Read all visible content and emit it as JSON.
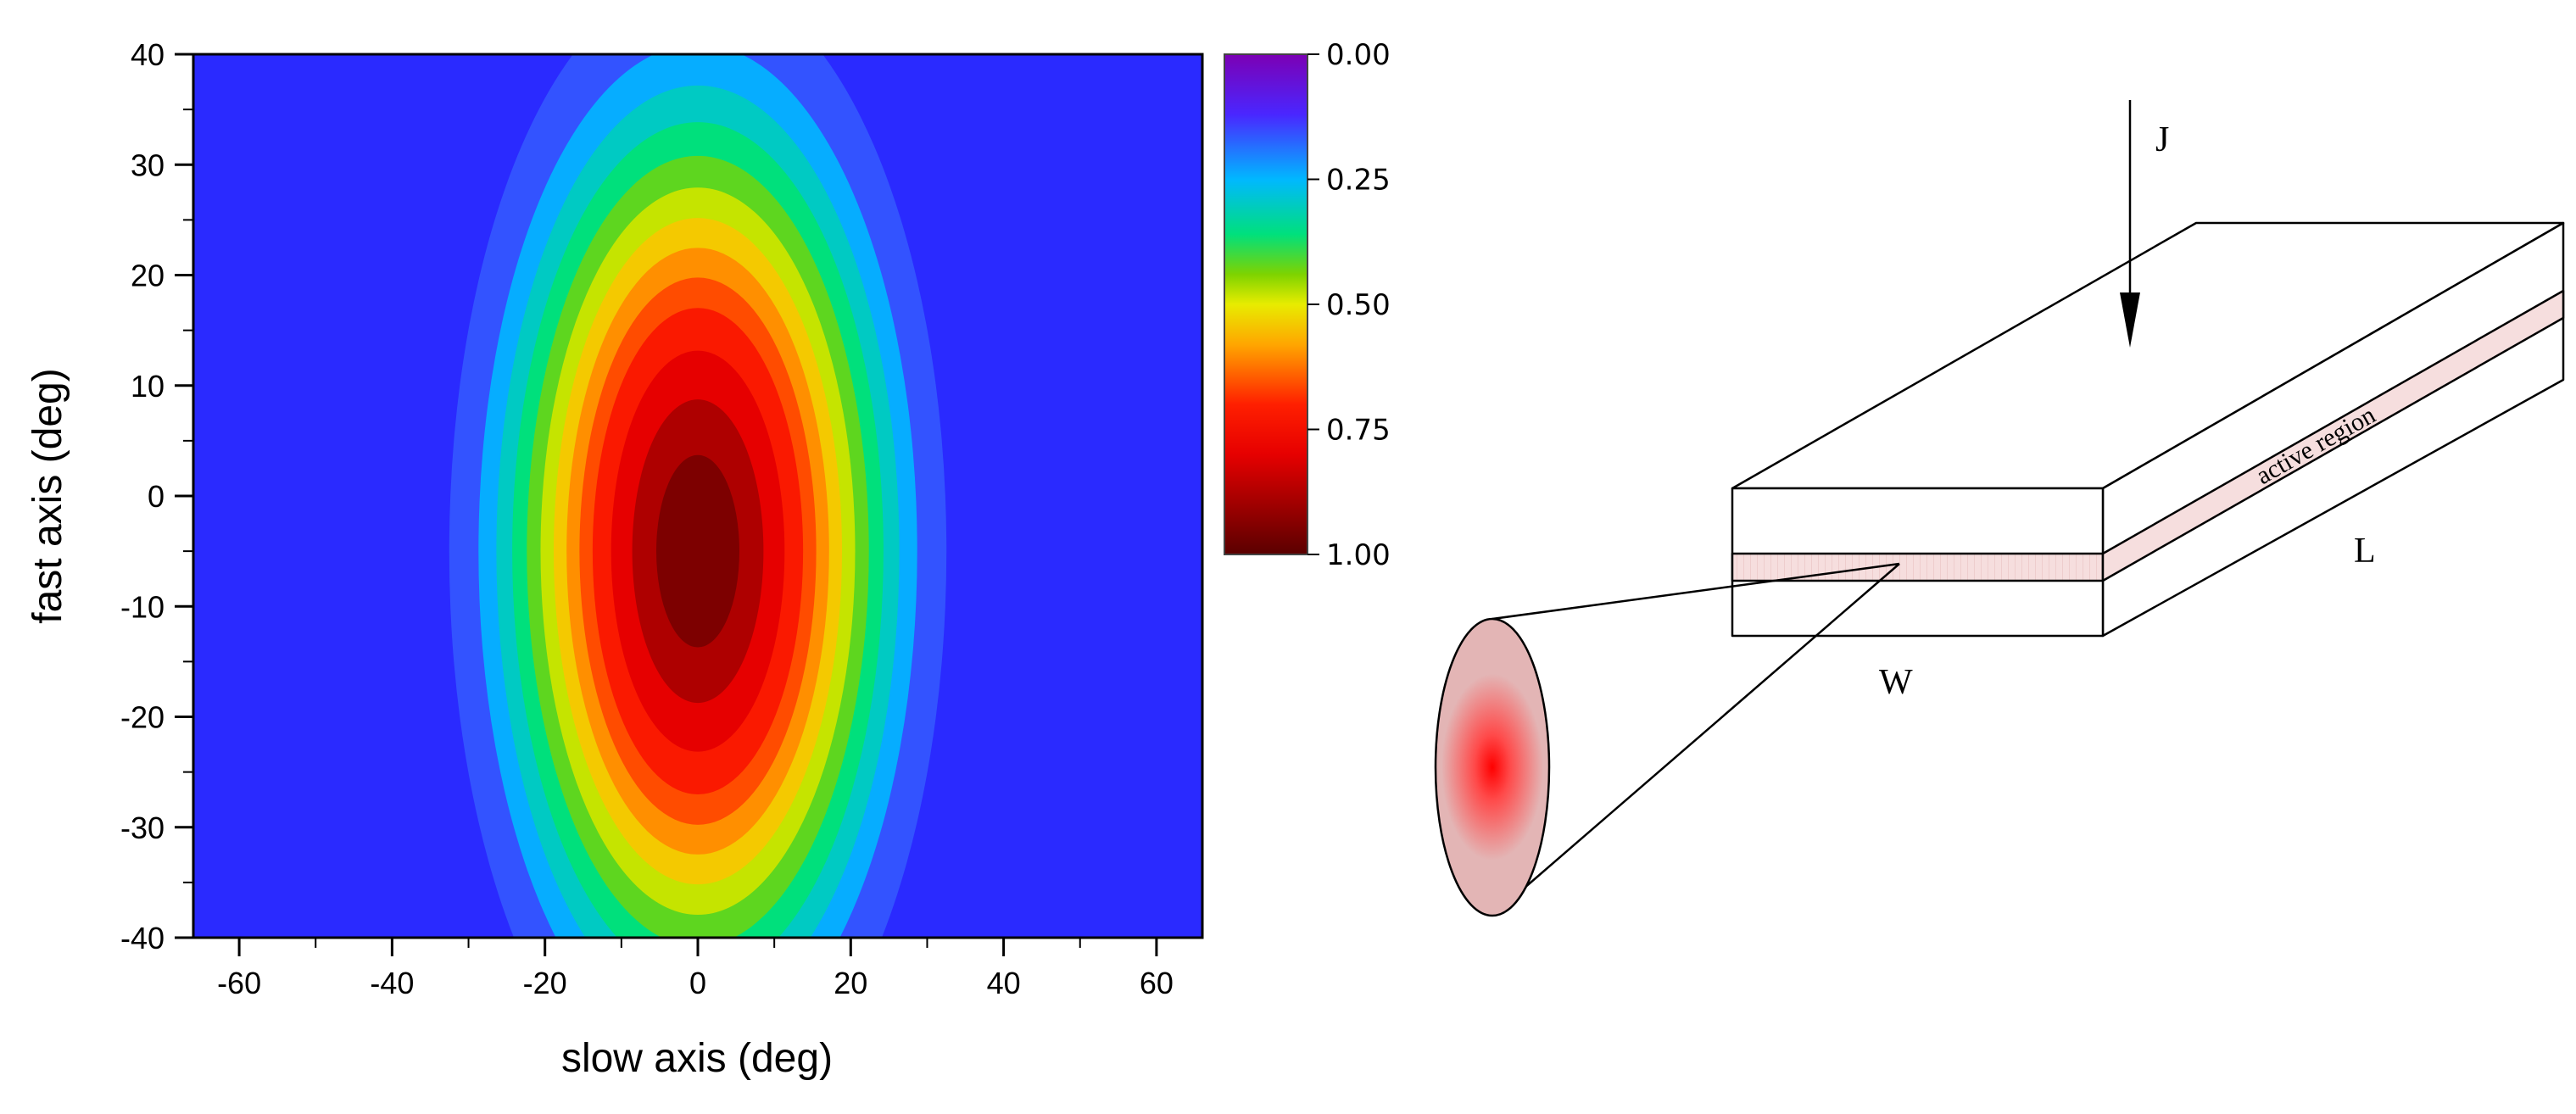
{
  "chart_data": {
    "type": "heatmap",
    "xlabel": "slow axis (deg)",
    "ylabel": "fast axis (deg)",
    "xlim": [
      -66,
      66
    ],
    "ylim": [
      -40,
      40
    ],
    "x_ticks": [
      -60,
      -40,
      -20,
      0,
      20,
      40,
      60
    ],
    "y_ticks": [
      40,
      30,
      20,
      10,
      0,
      -10,
      -20,
      -30,
      -40
    ],
    "x_tick_labels": [
      "-60",
      "-40",
      "-20",
      "0",
      "20",
      "40",
      "60"
    ],
    "y_tick_labels": [
      "40",
      "30",
      "20",
      "10",
      "0",
      "-10",
      "-20",
      "-30",
      "-40"
    ],
    "colorbar": {
      "range": [
        0,
        1
      ],
      "ticks": [
        "0.00",
        "0.25",
        "0.50",
        "0.75",
        "1.00"
      ],
      "colormap": "rainbow",
      "orientation": "top 0.00, bottom 1.00"
    },
    "intensity_profile": {
      "peak_value": 1.0,
      "peak_x_deg": 0,
      "peak_y_deg": -5,
      "half_max_contour_x_deg": [
        -20,
        20
      ],
      "half_max_contour_y_deg": [
        -32,
        32
      ],
      "edge_value_x": 0.1
    }
  },
  "diagram": {
    "current_label": "J",
    "active_region_label": "active region",
    "width_label": "W",
    "length_label": "L",
    "colors": {
      "active_region_fill": "#f6dede",
      "beam_ellipse_fill": "#e3b5b5",
      "beam_spot": "#ff0000"
    }
  }
}
